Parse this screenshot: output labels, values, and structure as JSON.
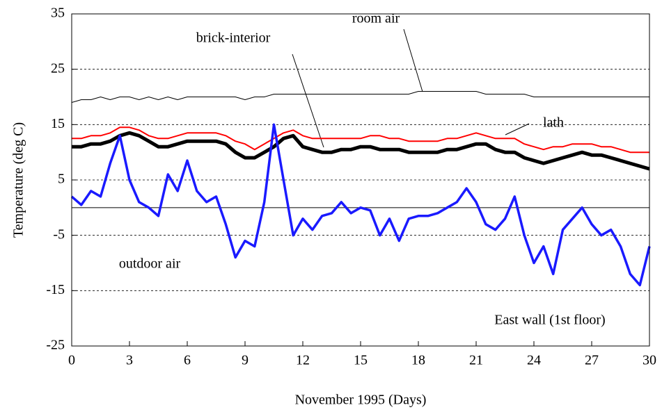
{
  "chart_data": {
    "type": "line",
    "x_label": "November 1995 (Days)",
    "y_label": "Temperature (deg C)",
    "annotations": [
      "East wall (1st floor)"
    ],
    "xlim": [
      0,
      30
    ],
    "xticks": [
      0,
      3,
      6,
      9,
      12,
      15,
      18,
      21,
      24,
      27,
      30
    ],
    "ylim": [
      -25,
      35
    ],
    "yticks": [
      -25,
      -15,
      -5,
      5,
      15,
      25,
      35
    ],
    "grid": true,
    "zero_line": true,
    "x": [
      0,
      0.5,
      1,
      1.5,
      2,
      2.5,
      3,
      3.5,
      4,
      4.5,
      5,
      5.5,
      6,
      6.5,
      7,
      7.5,
      8,
      8.5,
      9,
      9.5,
      10,
      10.5,
      11,
      11.5,
      12,
      12.5,
      13,
      13.5,
      14,
      14.5,
      15,
      15.5,
      16,
      16.5,
      17,
      17.5,
      18,
      18.5,
      19,
      19.5,
      20,
      20.5,
      21,
      21.5,
      22,
      22.5,
      23,
      23.5,
      24,
      24.5,
      25,
      25.5,
      26,
      26.5,
      27,
      27.5,
      28,
      28.5,
      29,
      29.5,
      30
    ],
    "series": [
      {
        "name": "room air",
        "color": "#000000",
        "values": [
          19,
          19.5,
          19.5,
          20,
          19.5,
          20,
          20,
          19.5,
          20,
          19.5,
          20,
          19.5,
          20,
          20,
          20,
          20,
          20,
          20,
          19.5,
          20,
          20,
          20.5,
          20.5,
          20.5,
          20.5,
          20.5,
          20.5,
          20.5,
          20.5,
          20.5,
          20.5,
          20.5,
          20.5,
          20.5,
          20.5,
          20.5,
          21,
          21,
          21,
          21,
          21,
          21,
          21,
          20.5,
          20.5,
          20.5,
          20.5,
          20.5,
          20,
          20,
          20,
          20,
          20,
          20,
          20,
          20,
          20,
          20,
          20,
          20,
          20
        ]
      },
      {
        "name": "lath",
        "color": "#ff0000",
        "values": [
          12.5,
          12.5,
          13,
          13,
          13.5,
          14.5,
          14.5,
          14,
          13,
          12.5,
          12.5,
          13,
          13.5,
          13.5,
          13.5,
          13.5,
          13,
          12,
          11.5,
          10.5,
          11.5,
          12.5,
          13.5,
          14,
          13,
          12.5,
          12.5,
          12.5,
          12.5,
          12.5,
          12.5,
          13,
          13,
          12.5,
          12.5,
          12,
          12,
          12,
          12,
          12.5,
          12.5,
          13,
          13.5,
          13,
          12.5,
          12.5,
          12.5,
          11.5,
          11,
          10.5,
          11,
          11,
          11.5,
          11.5,
          11.5,
          11,
          11,
          10.5,
          10,
          10,
          10
        ]
      },
      {
        "name": "brick-interior",
        "color": "#000000",
        "values": [
          11,
          11,
          11.5,
          11.5,
          12,
          13,
          13.5,
          13,
          12,
          11,
          11,
          11.5,
          12,
          12,
          12,
          12,
          11.5,
          10,
          9,
          9,
          10,
          11,
          12.5,
          13,
          11,
          10.5,
          10,
          10,
          10.5,
          10.5,
          11,
          11,
          10.5,
          10.5,
          10.5,
          10,
          10,
          10,
          10,
          10.5,
          10.5,
          11,
          11.5,
          11.5,
          10.5,
          10,
          10,
          9,
          8.5,
          8,
          8.5,
          9,
          9.5,
          10,
          9.5,
          9.5,
          9,
          8.5,
          8,
          7.5,
          7
        ]
      },
      {
        "name": "outdoor air",
        "color": "#1a1aff",
        "values": [
          2,
          0.5,
          3,
          2,
          8,
          13,
          5,
          1,
          0,
          -1.5,
          6,
          3,
          8.5,
          3,
          1,
          2,
          -3,
          -9,
          -6,
          -7,
          1,
          15,
          5,
          -5,
          -2,
          -4,
          -1.5,
          -1,
          1,
          -1,
          0,
          -0.5,
          -5,
          -2,
          -6,
          -2,
          -1.5,
          -1.5,
          -1,
          0,
          1,
          3.5,
          1,
          -3,
          -4,
          -2,
          2,
          -5,
          -10,
          -7,
          -12,
          -4,
          -2,
          0,
          -3,
          -5,
          -4,
          -7,
          -12,
          -14,
          -7
        ]
      }
    ]
  }
}
